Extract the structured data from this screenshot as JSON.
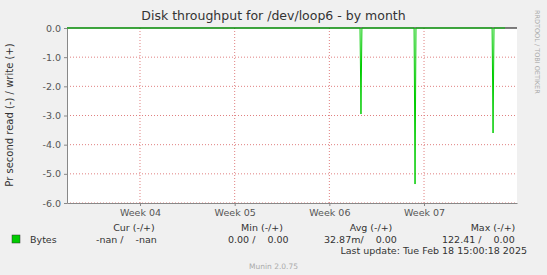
{
  "chart_data": {
    "type": "line",
    "title": "Disk throughput for /dev/loop6 - by month",
    "y_label": "Pr second read (-) / write (+)",
    "watermark": "RRDTOOL / TOBI OETIKER",
    "x": [
      3.229,
      6.324,
      6.334,
      6.344,
      6.895,
      6.905,
      6.915,
      7.719,
      7.729,
      7.739,
      7.856
    ],
    "series": [
      {
        "name": "Bytes",
        "color": "#00cc00",
        "values": [
          0,
          0,
          -2.95,
          0,
          0,
          -5.35,
          0,
          0,
          -3.6,
          0,
          0
        ]
      }
    ],
    "xlim": [
      3.229,
      7.982
    ],
    "xticks": [
      {
        "value": 4,
        "label": "Week 04"
      },
      {
        "value": 5,
        "label": "Week 05"
      },
      {
        "value": 6,
        "label": "Week 06"
      },
      {
        "value": 7,
        "label": "Week 07"
      }
    ],
    "ylim": [
      -6,
      0
    ],
    "yticks": [
      {
        "value": 0,
        "label": "0.0"
      },
      {
        "value": -1,
        "label": "-1.0"
      },
      {
        "value": -2,
        "label": "-2.0"
      },
      {
        "value": -3,
        "label": "-3.0"
      },
      {
        "value": -4,
        "label": "-4.0"
      },
      {
        "value": -5,
        "label": "-5.0"
      },
      {
        "value": -6,
        "label": "-6.0"
      }
    ],
    "grid": true,
    "legend_table": {
      "headers": [
        "Cur (-/+)",
        "Min (-/+)",
        "Avg (-/+)",
        "Max (-/+)"
      ],
      "cells": [
        "-nan /    -nan",
        "0.00 /    0.00",
        "32.87m/    0.00",
        "122.41 /    0.00"
      ]
    },
    "last_update": "Last update: Tue Feb 18 15:00:18 2025",
    "footer": "Munin 2.0.75"
  }
}
